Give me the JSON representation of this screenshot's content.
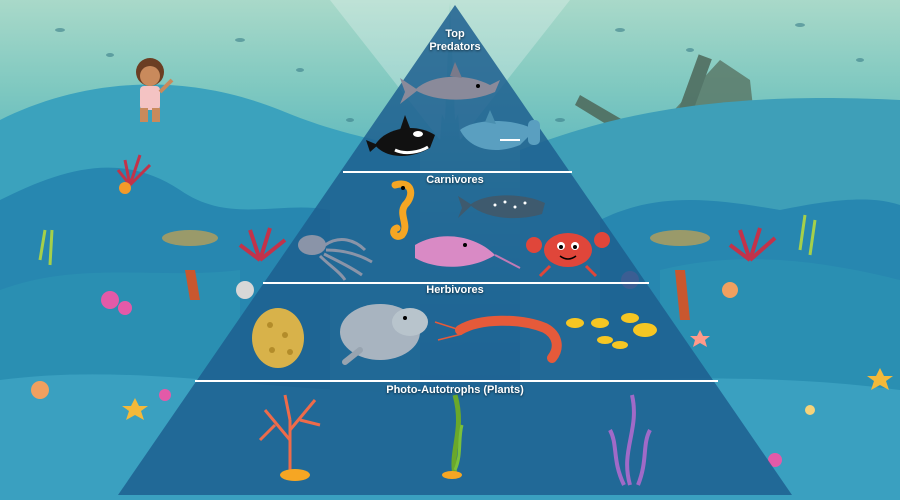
{
  "pyramid": {
    "tiers": [
      {
        "id": "top-predators",
        "label_line1": "Top",
        "label_line2": "Predators"
      },
      {
        "id": "carnivores",
        "label": "Carnivores"
      },
      {
        "id": "herbivores",
        "label": "Herbivores"
      },
      {
        "id": "photo-autotrophs",
        "label": "Photo-Autotrophs (Plants)"
      }
    ]
  },
  "organisms": {
    "top_predators": [
      "great-white-shark-icon",
      "orca-icon",
      "hammerhead-shark-icon"
    ],
    "carnivores": [
      "seahorse-icon",
      "whale-shark-icon",
      "octopus-icon",
      "stingray-icon",
      "crab-icon"
    ],
    "herbivores": [
      "sea-sponge-icon",
      "manatee-icon",
      "shrimp-icon",
      "yellow-fish-school-icon"
    ],
    "plants": [
      "coral-icon",
      "seagrass-icon",
      "purple-seaweed-icon"
    ]
  },
  "colors": {
    "water_top": "#a9d9c9",
    "water_bottom": "#1e6ea5",
    "pyramid_fill": "#1d5f8f",
    "divider": "#ffffff"
  }
}
